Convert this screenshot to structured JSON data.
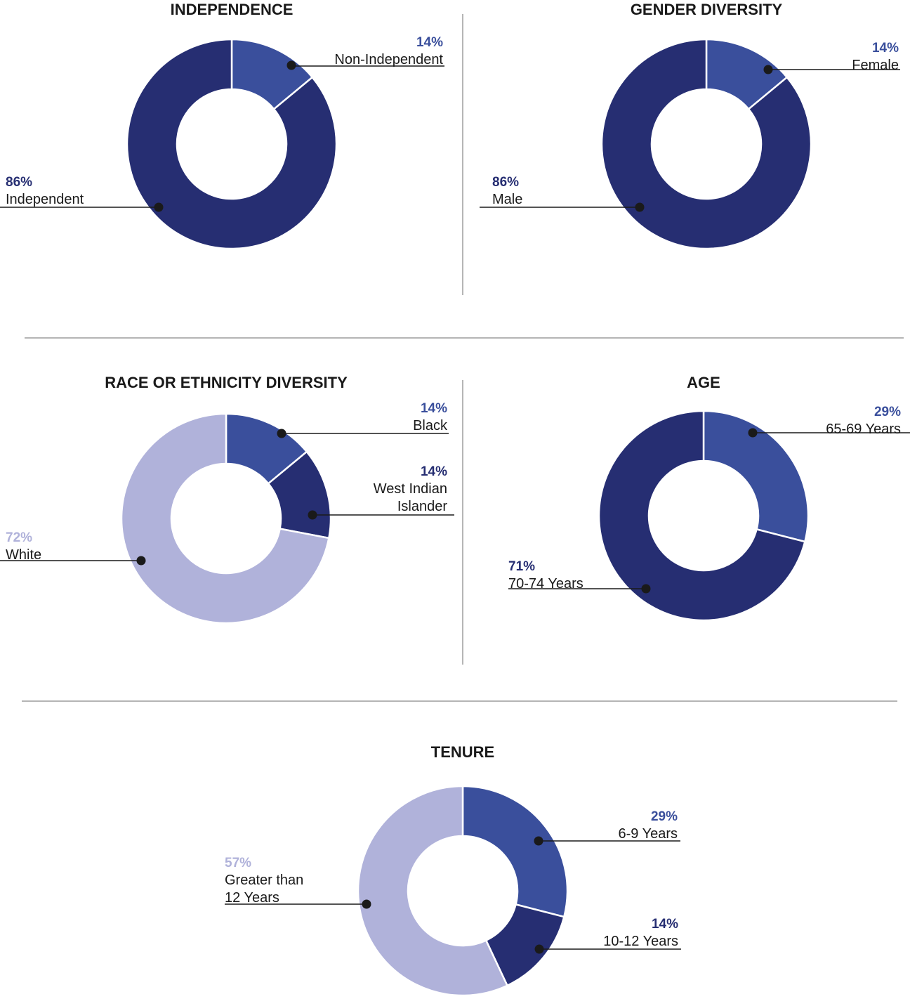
{
  "colors": {
    "medium": "#3a4f9c",
    "dark": "#262e72",
    "light": "#b0b2da",
    "ink": "#1a1a1a"
  },
  "chart_data": [
    {
      "id": "independence",
      "type": "pie",
      "title": "INDEPENDENCE",
      "slices": [
        {
          "name": "Non-Independent",
          "value": 14,
          "pct_label": "14%",
          "label_lines": [
            "Non-Independent"
          ],
          "color": "#3a4f9c"
        },
        {
          "name": "Independent",
          "value": 86,
          "pct_label": "86%",
          "label_lines": [
            "Independent"
          ],
          "color": "#262e72"
        }
      ]
    },
    {
      "id": "gender",
      "type": "pie",
      "title": "GENDER DIVERSITY",
      "slices": [
        {
          "name": "Female",
          "value": 14,
          "pct_label": "14%",
          "label_lines": [
            "Female"
          ],
          "color": "#3a4f9c"
        },
        {
          "name": "Male",
          "value": 86,
          "pct_label": "86%",
          "label_lines": [
            "Male"
          ],
          "color": "#262e72"
        }
      ]
    },
    {
      "id": "race",
      "type": "pie",
      "title": "RACE OR ETHNICITY DIVERSITY",
      "slices": [
        {
          "name": "Black",
          "value": 14,
          "pct_label": "14%",
          "label_lines": [
            "Black"
          ],
          "color": "#3a4f9c"
        },
        {
          "name": "West Indian Islander",
          "value": 14,
          "pct_label": "14%",
          "label_lines": [
            "West Indian",
            "Islander"
          ],
          "color": "#262e72"
        },
        {
          "name": "White",
          "value": 72,
          "pct_label": "72%",
          "label_lines": [
            "White"
          ],
          "color": "#b0b2da"
        }
      ]
    },
    {
      "id": "age",
      "type": "pie",
      "title": "AGE",
      "slices": [
        {
          "name": "65-69 Years",
          "value": 29,
          "pct_label": "29%",
          "label_lines": [
            "65-69 Years"
          ],
          "color": "#3a4f9c"
        },
        {
          "name": "70-74 Years",
          "value": 71,
          "pct_label": "71%",
          "label_lines": [
            "70-74 Years"
          ],
          "color": "#262e72"
        }
      ]
    },
    {
      "id": "tenure",
      "type": "pie",
      "title": "TENURE",
      "slices": [
        {
          "name": "6-9 Years",
          "value": 29,
          "pct_label": "29%",
          "label_lines": [
            "6-9 Years"
          ],
          "color": "#3a4f9c"
        },
        {
          "name": "10-12 Years",
          "value": 14,
          "pct_label": "14%",
          "label_lines": [
            "10-12 Years"
          ],
          "color": "#262e72"
        },
        {
          "name": "Greater than 12 Years",
          "value": 57,
          "pct_label": "57%",
          "label_lines": [
            "Greater than",
            "12 Years"
          ],
          "color": "#b0b2da"
        }
      ]
    }
  ]
}
